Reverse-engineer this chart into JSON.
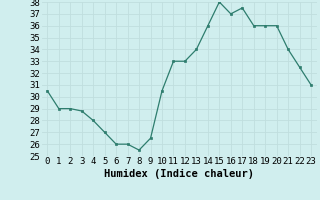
{
  "x": [
    0,
    1,
    2,
    3,
    4,
    5,
    6,
    7,
    8,
    9,
    10,
    11,
    12,
    13,
    14,
    15,
    16,
    17,
    18,
    19,
    20,
    21,
    22,
    23
  ],
  "y": [
    30.5,
    29.0,
    29.0,
    28.8,
    28.0,
    27.0,
    26.0,
    26.0,
    25.5,
    26.5,
    30.5,
    33.0,
    33.0,
    34.0,
    36.0,
    38.0,
    37.0,
    37.5,
    36.0,
    36.0,
    36.0,
    34.0,
    32.5,
    31.0
  ],
  "xlabel": "Humidex (Indice chaleur)",
  "ylim": [
    25,
    38
  ],
  "yticks": [
    25,
    26,
    27,
    28,
    29,
    30,
    31,
    32,
    33,
    34,
    35,
    36,
    37,
    38
  ],
  "xticks": [
    0,
    1,
    2,
    3,
    4,
    5,
    6,
    7,
    8,
    9,
    10,
    11,
    12,
    13,
    14,
    15,
    16,
    17,
    18,
    19,
    20,
    21,
    22,
    23
  ],
  "line_color": "#2e7d6e",
  "marker_color": "#2e7d6e",
  "bg_color": "#d0eeee",
  "grid_color": "#c0dede",
  "tick_fontsize": 6.5,
  "xlabel_fontsize": 7.5
}
